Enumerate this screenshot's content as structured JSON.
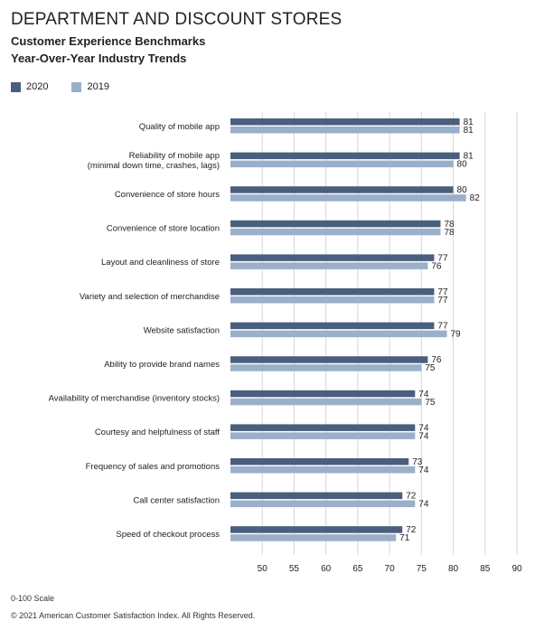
{
  "page": {
    "title": "DEPARTMENT AND DISCOUNT STORES",
    "subtitle_line1": "Customer Experience Benchmarks",
    "subtitle_line2": "Year-Over-Year Industry Trends",
    "scale_note": "0-100 Scale",
    "copyright": "© 2021 American Customer Satisfaction Index. All Rights Reserved."
  },
  "chart_data": {
    "type": "bar",
    "orientation": "horizontal",
    "categories": [
      [
        "Quality of mobile app"
      ],
      [
        "Reliability of mobile app",
        "(minimal down time, crashes, lags)"
      ],
      [
        "Convenience of store hours"
      ],
      [
        "Convenience of store location"
      ],
      [
        "Layout and cleanliness of store"
      ],
      [
        "Variety and selection of merchandise"
      ],
      [
        "Website satisfaction"
      ],
      [
        "Ability to provide brand names"
      ],
      [
        "Availability of merchandise (inventory stocks)"
      ],
      [
        "Courtesy and helpfulness of staff"
      ],
      [
        "Frequency of sales and promotions"
      ],
      [
        "Call center satisfaction"
      ],
      [
        "Speed of checkout process"
      ]
    ],
    "series": [
      {
        "name": "2020",
        "color": "#4a5f7d",
        "values": [
          81,
          81,
          80,
          78,
          77,
          77,
          77,
          76,
          74,
          74,
          73,
          72,
          72
        ]
      },
      {
        "name": "2019",
        "color": "#9aafca",
        "values": [
          81,
          80,
          82,
          78,
          76,
          77,
          79,
          75,
          75,
          74,
          74,
          74,
          71
        ]
      }
    ],
    "xlim": [
      45,
      90
    ],
    "xticks": [
      50,
      55,
      60,
      65,
      70,
      75,
      80,
      85,
      90
    ],
    "grid": true,
    "legend_position": "top-left"
  }
}
